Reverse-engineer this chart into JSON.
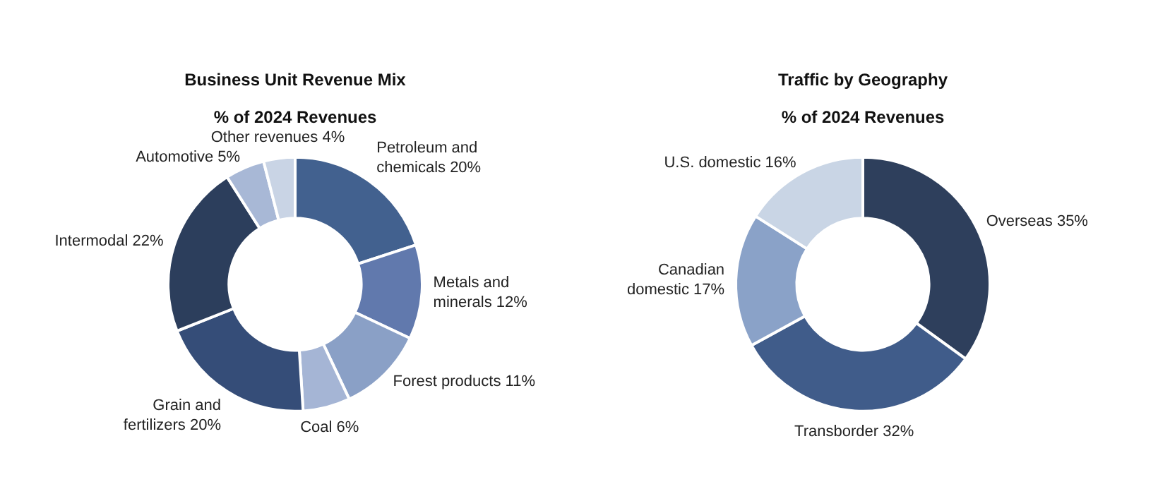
{
  "chart_data": [
    {
      "type": "donut",
      "title": "Business Unit Revenue Mix",
      "subtitle": "% of 2024 Revenues",
      "categories": [
        "Petroleum and chemicals",
        "Metals and minerals",
        "Forest products",
        "Coal",
        "Grain and fertilizers",
        "Intermodal",
        "Automotive",
        "Other revenues"
      ],
      "values": [
        20,
        12,
        11,
        6,
        20,
        22,
        5,
        4
      ],
      "colors": [
        "#42618f",
        "#6179ad",
        "#8aa0c6",
        "#a5b5d5",
        "#354d78",
        "#2c3e5c",
        "#a8b8d6",
        "#c9d4e5"
      ],
      "value_labels": [
        "20%",
        "12%",
        "11%",
        "6%",
        "20%",
        "22%",
        "5%",
        "4%"
      ]
    },
    {
      "type": "donut",
      "title": "Traffic by Geography",
      "subtitle": "% of 2024 Revenues",
      "categories": [
        "Overseas",
        "Transborder",
        "Canadian domestic",
        "U.S. domestic"
      ],
      "values": [
        35,
        32,
        17,
        16
      ],
      "colors": [
        "#2e3f5c",
        "#405c8a",
        "#8aa2c8",
        "#c9d5e5"
      ],
      "value_labels": [
        "35%",
        "32%",
        "17%",
        "16%"
      ]
    }
  ]
}
